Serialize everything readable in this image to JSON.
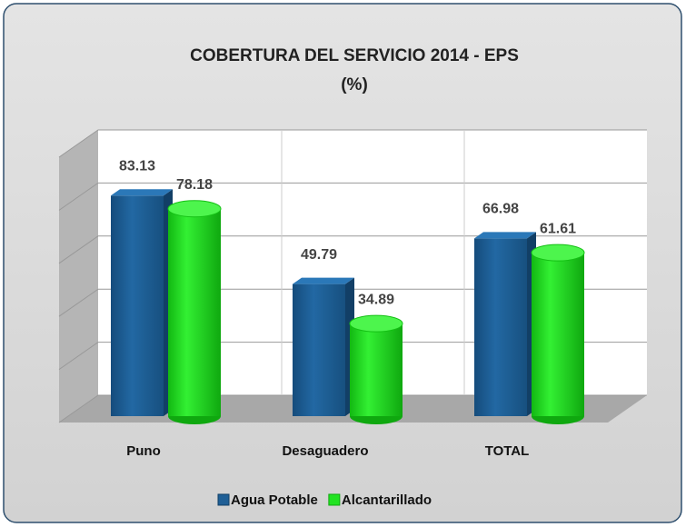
{
  "chart_data": {
    "type": "bar3d",
    "title": "COBERTURA DEL SERVICIO 2014 - EPS",
    "subtitle": "(%)",
    "categories": [
      "Puno",
      "Desaguadero",
      "TOTAL"
    ],
    "series": [
      {
        "name": "Agua Potable",
        "color": "#1f5f96",
        "values": [
          83.13,
          49.79,
          66.98
        ]
      },
      {
        "name": "Alcantarillado",
        "color": "#22e322",
        "values": [
          78.18,
          34.89,
          61.61
        ]
      }
    ],
    "ylim": [
      0,
      100
    ],
    "yticks": [
      0,
      20,
      40,
      60,
      80,
      100
    ],
    "grid": true,
    "legend": "bottom"
  }
}
